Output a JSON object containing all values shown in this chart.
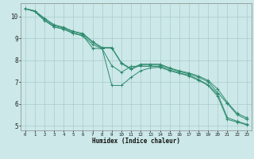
{
  "xlabel": "Humidex (Indice chaleur)",
  "bg_color": "#cce8e8",
  "grid_color": "#aacccc",
  "line_color": "#2e8b6e",
  "xlim": [
    -0.5,
    23.5
  ],
  "ylim": [
    4.8,
    10.6
  ],
  "xticks": [
    0,
    1,
    2,
    3,
    4,
    5,
    6,
    7,
    8,
    9,
    10,
    11,
    12,
    13,
    14,
    15,
    16,
    17,
    18,
    19,
    20,
    21,
    22,
    23
  ],
  "yticks": [
    5,
    6,
    7,
    8,
    9,
    10
  ],
  "series": [
    [
      10.35,
      10.25,
      9.92,
      9.62,
      9.5,
      9.32,
      9.22,
      8.85,
      8.58,
      8.58,
      7.88,
      7.62,
      7.82,
      7.82,
      7.82,
      7.65,
      7.52,
      7.42,
      7.28,
      7.08,
      6.68,
      6.08,
      5.58,
      5.38
    ],
    [
      10.35,
      10.25,
      9.88,
      9.58,
      9.47,
      9.28,
      9.18,
      8.82,
      8.55,
      8.55,
      7.85,
      7.58,
      7.78,
      7.78,
      7.78,
      7.62,
      7.48,
      7.38,
      7.22,
      7.02,
      6.52,
      6.02,
      5.52,
      5.3
    ],
    [
      10.35,
      10.22,
      9.82,
      9.52,
      9.42,
      9.22,
      9.12,
      8.72,
      8.52,
      7.75,
      7.45,
      7.72,
      7.72,
      7.72,
      7.72,
      7.55,
      7.42,
      7.32,
      7.12,
      6.88,
      6.45,
      5.38,
      5.22,
      5.08
    ],
    [
      10.35,
      10.22,
      9.82,
      9.52,
      9.42,
      9.22,
      9.12,
      8.55,
      8.52,
      6.85,
      6.85,
      7.22,
      7.52,
      7.65,
      7.68,
      7.52,
      7.4,
      7.28,
      7.08,
      6.85,
      6.35,
      5.3,
      5.18,
      5.05
    ]
  ]
}
